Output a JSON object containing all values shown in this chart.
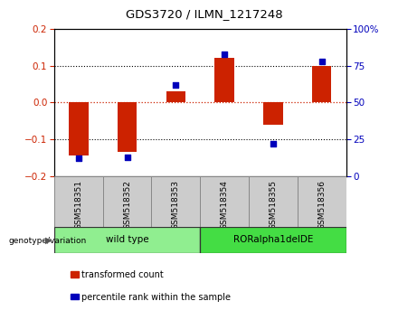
{
  "title": "GDS3720 / ILMN_1217248",
  "samples": [
    "GSM518351",
    "GSM518352",
    "GSM518353",
    "GSM518354",
    "GSM518355",
    "GSM518356"
  ],
  "transformed_count": [
    -0.145,
    -0.135,
    0.03,
    0.12,
    -0.06,
    0.1
  ],
  "percentile_rank": [
    12,
    13,
    62,
    83,
    22,
    78
  ],
  "groups": [
    {
      "label": "wild type",
      "start": 0,
      "end": 3,
      "color": "#90EE90"
    },
    {
      "label": "RORalpha1delDE",
      "start": 3,
      "end": 6,
      "color": "#44DD44"
    }
  ],
  "ylim_left": [
    -0.2,
    0.2
  ],
  "ylim_right": [
    0,
    100
  ],
  "yticks_left": [
    -0.2,
    -0.1,
    0,
    0.1,
    0.2
  ],
  "yticks_right": [
    0,
    25,
    50,
    75,
    100
  ],
  "bar_color": "#CC2200",
  "dot_color": "#0000BB",
  "hline_color": "#CC2200",
  "legend_bar_label": "transformed count",
  "legend_dot_label": "percentile rank within the sample",
  "genotype_label": "genotype/variation",
  "tick_label_color_left": "#CC2200",
  "tick_label_color_right": "#0000BB",
  "sample_box_color": "#CCCCCC",
  "sample_box_edge": "#888888",
  "bar_width": 0.4
}
